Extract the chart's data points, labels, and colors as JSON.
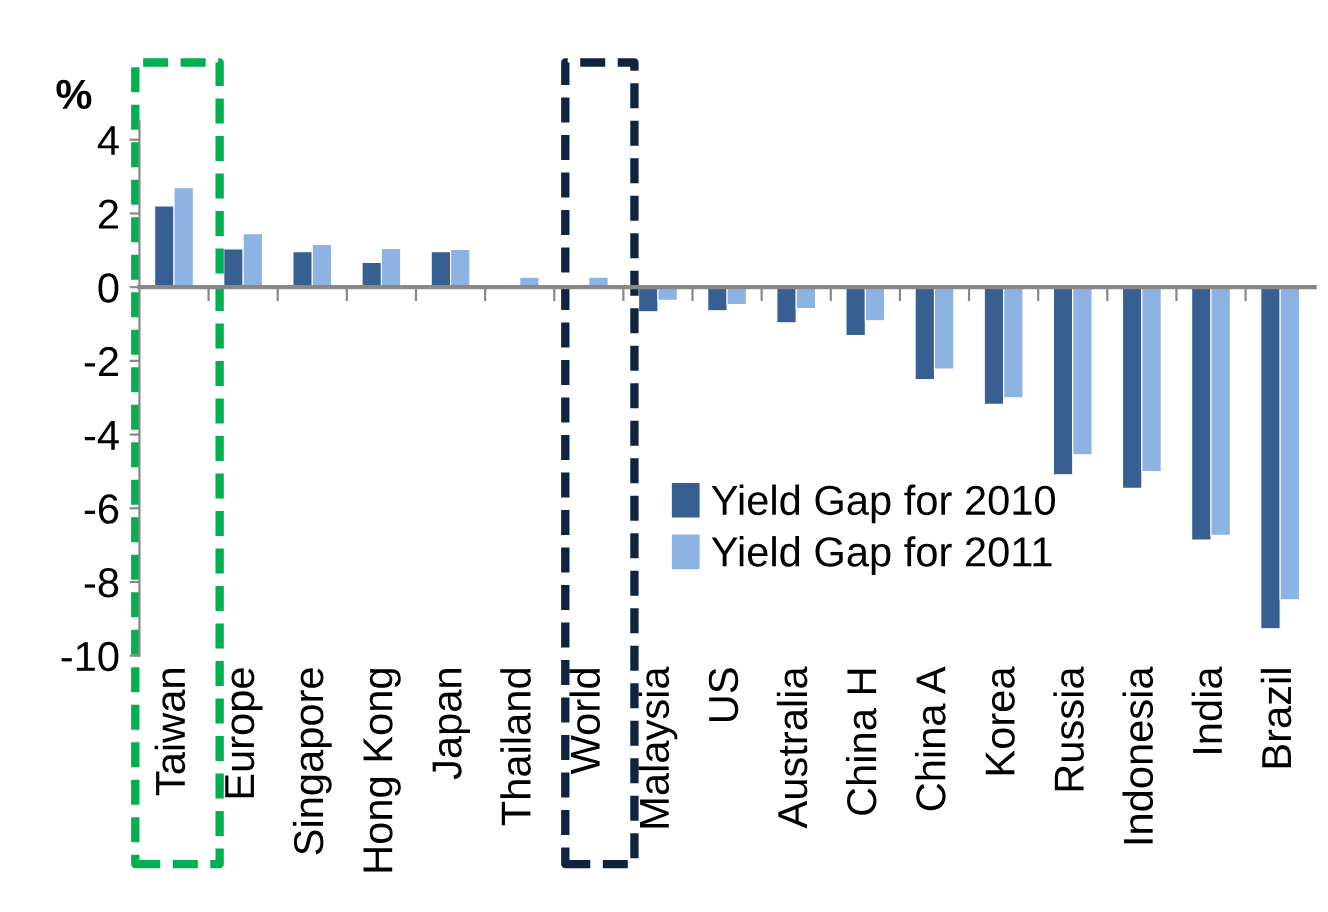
{
  "chart_data": {
    "type": "bar",
    "ylabel": "%",
    "categories": [
      "Taiwan",
      "Europe",
      "Singapore",
      "Hong Kong",
      "Japan",
      "Thailand",
      "World",
      "Malaysia",
      "US",
      "Australia",
      "China H",
      "China A",
      "Korea",
      "Russia",
      "Indonesia",
      "India",
      "Brazil"
    ],
    "series": [
      {
        "name": "Yield Gap for 2010",
        "color": "#375f91",
        "values": [
          2.2,
          1.04,
          0.96,
          0.67,
          0.96,
          null,
          null,
          -0.67,
          -0.64,
          -0.97,
          -1.31,
          -2.51,
          -3.18,
          -5.09,
          -5.46,
          -6.86,
          -9.27
        ]
      },
      {
        "name": "Yield Gap for 2011",
        "color": "#8db3e2",
        "values": [
          2.7,
          1.45,
          1.16,
          1.05,
          1.02,
          0.27,
          0.27,
          -0.36,
          -0.47,
          -0.58,
          -0.91,
          -2.22,
          -3.0,
          -4.55,
          -5.0,
          -6.73,
          -8.48
        ]
      }
    ],
    "ylim": [
      -10,
      4.5
    ],
    "yticks": [
      -10,
      -8,
      -6,
      -4,
      -2,
      0,
      2,
      4
    ],
    "legend": "bottom"
  }
}
